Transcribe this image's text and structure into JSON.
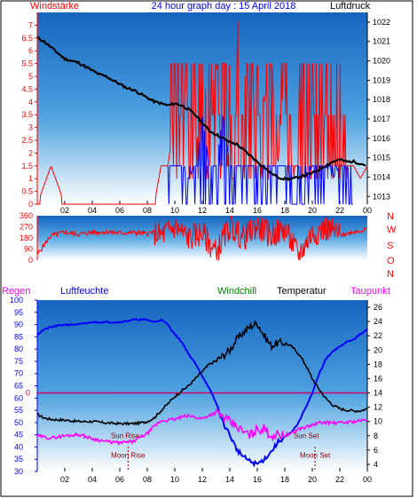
{
  "colors": {
    "wind": "#ff0000",
    "wind_dir": "#ff0000",
    "gust": "#0000ff",
    "pressure": "#000000",
    "humidity": "#0000ff",
    "windchill": "#ff00ff",
    "temperature": "#000000",
    "dewpoint": "#ff00ff",
    "zero_line": "#cc0066"
  },
  "chart_data": [
    {
      "type": "line",
      "title": "24 hour graph day : 15 April 2018",
      "left_title": "Windstärke",
      "right_title": "Luftdruck",
      "x_ticks": [
        "02",
        "04",
        "06",
        "08",
        "10",
        "12",
        "14",
        "16",
        "18",
        "20",
        "22",
        "00"
      ],
      "y_left_ticks": [
        "0",
        "0.5",
        "1",
        "1.5",
        "2",
        "2.5",
        "3",
        "3.5",
        "4",
        "4.5",
        "5",
        "5.5",
        "6",
        "6.5",
        "7"
      ],
      "y_left_range": [
        0,
        7.5
      ],
      "y_right_ticks": [
        "1013",
        "1014",
        "1015",
        "1016",
        "1017",
        "1018",
        "1019",
        "1020",
        "1021",
        "1022"
      ],
      "y_right_range": [
        1012.6,
        1022.5
      ],
      "series": [
        {
          "name": "Luftdruck",
          "axis": "right",
          "x_hours": [
            0,
            0.5,
            1,
            1.5,
            2,
            2.5,
            3,
            3.5,
            4,
            4.5,
            5,
            5.5,
            6,
            6.5,
            7,
            7.5,
            8,
            8.5,
            9,
            9.5,
            10,
            10.5,
            11,
            11.5,
            12,
            12.5,
            13,
            13.5,
            14,
            14.5,
            15,
            15.5,
            16,
            16.5,
            17,
            17.5,
            18,
            18.5,
            19,
            19.5,
            20,
            20.5,
            21,
            21.5,
            22,
            22.5,
            23,
            23.5,
            24
          ],
          "values": [
            1021.2,
            1021.0,
            1020.7,
            1020.4,
            1020.1,
            1020.0,
            1019.9,
            1019.7,
            1019.5,
            1019.3,
            1019.2,
            1019.0,
            1018.8,
            1018.6,
            1018.5,
            1018.3,
            1018.1,
            1017.9,
            1017.8,
            1017.7,
            1017.8,
            1017.7,
            1017.5,
            1017.2,
            1016.8,
            1016.4,
            1016.2,
            1016.0,
            1015.8,
            1015.7,
            1015.4,
            1015.1,
            1014.8,
            1014.5,
            1014.2,
            1014.0,
            1013.9,
            1013.9,
            1014.0,
            1014.1,
            1014.2,
            1014.4,
            1014.6,
            1014.8,
            1014.9,
            1014.8,
            1014.8,
            1014.7,
            1014.6
          ]
        },
        {
          "name": "Wind",
          "axis": "left",
          "note_pattern": "red",
          "x_hours": [
            0,
            1,
            2,
            3,
            4,
            5,
            6,
            7,
            8,
            8.5,
            9,
            9.5,
            10,
            10.5,
            11,
            11.5,
            12,
            12.5,
            13,
            13.5,
            14,
            14.5,
            15,
            15.5,
            16,
            16.5,
            17,
            17.5,
            18,
            18.5,
            19,
            19.5,
            20,
            20.5,
            21,
            21.5,
            22,
            22.5,
            23,
            23.5,
            24
          ],
          "values": [
            0,
            1.5,
            0,
            0,
            0,
            0,
            0,
            0,
            0,
            0,
            1.5,
            1.5,
            3.5,
            5.5,
            3.5,
            1.5,
            5.5,
            3.5,
            5.5,
            4,
            5.5,
            7.5,
            5.5,
            3.5,
            5.5,
            4,
            5.5,
            1.5,
            5.5,
            1.5,
            1.5,
            1,
            0.5,
            3.5,
            1.5,
            1.5,
            1.5,
            1.5,
            1.5,
            1,
            1.5
          ]
        },
        {
          "name": "Gust",
          "axis": "left",
          "x_hours": [
            9.5,
            10,
            10.5,
            11,
            11.5,
            12,
            12.5,
            13,
            13.5,
            14,
            14.5,
            15,
            15.5,
            16,
            16.5,
            17,
            17.5,
            18,
            18.5,
            19,
            19.5,
            20,
            20.5,
            21,
            21.5,
            22,
            22.5,
            23
          ],
          "values": [
            1.5,
            1.5,
            1.5,
            1,
            1.5,
            3.5,
            1.5,
            1.5,
            3.5,
            1.5,
            1.5,
            1.5,
            1.5,
            1.5,
            1.5,
            1.5,
            1.5,
            1.5,
            1.5,
            1.5,
            1,
            1.5,
            1.5,
            1.5,
            1,
            1.5,
            1.5,
            1
          ]
        }
      ]
    },
    {
      "type": "line",
      "title": "",
      "y_ticks": [
        "0",
        "90",
        "180",
        "270",
        "360"
      ],
      "y_range": [
        0,
        360
      ],
      "right_labels": [
        "N",
        "W",
        "S",
        "O",
        "N"
      ],
      "series": [
        {
          "name": "Windrichtung",
          "x_hours": [
            0,
            1,
            2,
            3,
            4,
            5,
            6,
            7,
            8,
            8.5,
            9,
            10,
            11,
            12,
            13,
            14,
            15,
            16,
            17,
            18,
            19,
            20,
            21,
            22,
            23,
            24
          ],
          "values": [
            45,
            200,
            225,
            210,
            225,
            230,
            220,
            225,
            215,
            225,
            200,
            270,
            180,
            220,
            60,
            270,
            180,
            280,
            200,
            250,
            40,
            220,
            260,
            200,
            230,
            250
          ]
        }
      ]
    },
    {
      "type": "line",
      "left_titles": [
        "Regen",
        "Luftfeuchte"
      ],
      "right_titles": [
        "Windchill",
        "Temperatur",
        "Taupunkt"
      ],
      "y_left_ticks": [
        "30",
        "35",
        "40",
        "45",
        "50",
        "55",
        "60",
        "65",
        "70",
        "75",
        "80",
        "85",
        "90",
        "95",
        "100"
      ],
      "y_left_range": [
        30,
        100
      ],
      "y_right_ticks": [
        "4",
        "6",
        "8",
        "10",
        "12",
        "14",
        "16",
        "18",
        "20",
        "22",
        "24",
        "26"
      ],
      "y_right_range": [
        3,
        27
      ],
      "x_ticks": [
        "02",
        "04",
        "06",
        "08",
        "10",
        "12",
        "14",
        "16",
        "18",
        "20",
        "22",
        "00"
      ],
      "zero_label": "0",
      "annotations": [
        {
          "text": "Sun Rise",
          "x_hour": 6.4
        },
        {
          "text": "Moon Rise",
          "x_hour": 6.6
        },
        {
          "text": "Sun Set",
          "x_hour": 20.2
        },
        {
          "text": "Moon Set",
          "x_hour": 20.2
        }
      ],
      "series": [
        {
          "name": "Luftfeuchte",
          "axis": "left",
          "x_hours": [
            0,
            0.5,
            1,
            2,
            3,
            4,
            5,
            6,
            7,
            8,
            8.5,
            9,
            9.5,
            10,
            10.5,
            11,
            11.5,
            12,
            12.5,
            13,
            13.5,
            14,
            14.5,
            15,
            15.5,
            16,
            16.5,
            17,
            17.5,
            18,
            18.5,
            19,
            19.5,
            20,
            20.5,
            21,
            21.5,
            22,
            22.5,
            23,
            23.5,
            24
          ],
          "values": [
            86,
            88,
            89,
            90,
            90,
            91,
            91,
            91,
            92,
            92,
            91,
            92,
            90,
            86,
            83,
            78,
            74,
            69,
            64,
            58,
            50,
            45,
            39,
            36,
            34,
            33,
            35,
            38,
            42,
            44,
            46,
            50,
            56,
            62,
            70,
            76,
            79,
            81,
            83,
            84,
            86,
            88
          ]
        },
        {
          "name": "Temperatur",
          "axis": "right",
          "x_hours": [
            0,
            0.5,
            1,
            2,
            3,
            4,
            5,
            6,
            7,
            7.5,
            8,
            8.5,
            9,
            9.5,
            10,
            10.5,
            11,
            11.5,
            12,
            12.5,
            13,
            13.5,
            14,
            14.5,
            15,
            15.5,
            16,
            16.5,
            17,
            17.5,
            18,
            18.5,
            19,
            19.5,
            20,
            20.5,
            21,
            21.5,
            22,
            22.5,
            23,
            23.5,
            24
          ],
          "values": [
            11,
            10.5,
            10.3,
            10.2,
            10,
            10,
            9.8,
            9.7,
            9.7,
            9.8,
            10,
            10.5,
            11.5,
            12.5,
            13.5,
            14.3,
            15,
            16,
            17,
            18,
            18.5,
            19.2,
            20,
            21.5,
            22.5,
            23.3,
            23.8,
            22,
            20.6,
            21,
            21,
            20.5,
            19.5,
            18,
            16,
            14.5,
            13.2,
            12.3,
            11.8,
            11.6,
            11.5,
            11.5,
            11.8
          ]
        },
        {
          "name": "Taupunkt",
          "axis": "right",
          "x_hours": [
            0,
            0.5,
            1,
            2,
            3,
            4,
            5,
            6,
            7,
            7.5,
            8,
            8.5,
            9,
            9.5,
            10,
            10.5,
            11,
            11.5,
            12,
            12.5,
            13,
            13.5,
            14,
            14.5,
            15,
            15.5,
            16,
            16.5,
            17,
            17.5,
            18,
            18.5,
            19,
            19.5,
            20,
            20.5,
            21,
            21.5,
            22,
            22.5,
            23,
            23.5,
            24
          ],
          "values": [
            8,
            7.8,
            7.7,
            8,
            8.2,
            7.6,
            7.2,
            7,
            7.2,
            7.8,
            8.3,
            9.3,
            10.1,
            10.2,
            10.3,
            10.6,
            10.8,
            10.6,
            10.4,
            10.9,
            11.2,
            10.7,
            9.9,
            9.3,
            8.5,
            8.1,
            8.9,
            9,
            8,
            8.2,
            8.1,
            8.3,
            9,
            9.2,
            9.5,
            9.8,
            9.9,
            9.8,
            9.8,
            9.9,
            10,
            10.1,
            10.2
          ]
        }
      ]
    }
  ]
}
